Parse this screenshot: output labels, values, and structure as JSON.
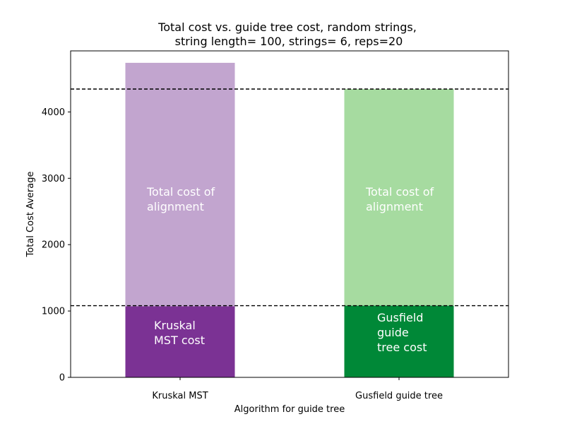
{
  "chart_data": {
    "type": "bar",
    "title_lines": [
      "Total cost vs. guide tree cost, random strings,",
      "string length= 100, strings= 6, reps=20"
    ],
    "xlabel": "Algorithm for guide tree",
    "ylabel": "Total Cost Average",
    "ylim": [
      0,
      4920
    ],
    "yticks": [
      0,
      1000,
      2000,
      3000,
      4000
    ],
    "categories": [
      "Kruskal MST",
      "Gusfield guide tree"
    ],
    "series": [
      {
        "name": "guide tree cost",
        "values": [
          1070,
          1080
        ],
        "colors": [
          "#7b3294",
          "#008837"
        ],
        "labels": [
          [
            "Kruskal",
            "MST cost"
          ],
          [
            "Gusfield",
            "guide",
            "tree cost"
          ]
        ]
      },
      {
        "name": "total cost of alignment",
        "values": [
          4740,
          4345
        ],
        "colors": [
          "#c2a5cf",
          "#a6dba0"
        ],
        "labels": [
          [
            "Total cost of",
            "alignment"
          ],
          [
            "Total cost of",
            "alignment"
          ]
        ]
      }
    ],
    "reference_lines": [
      4345,
      1080
    ]
  }
}
